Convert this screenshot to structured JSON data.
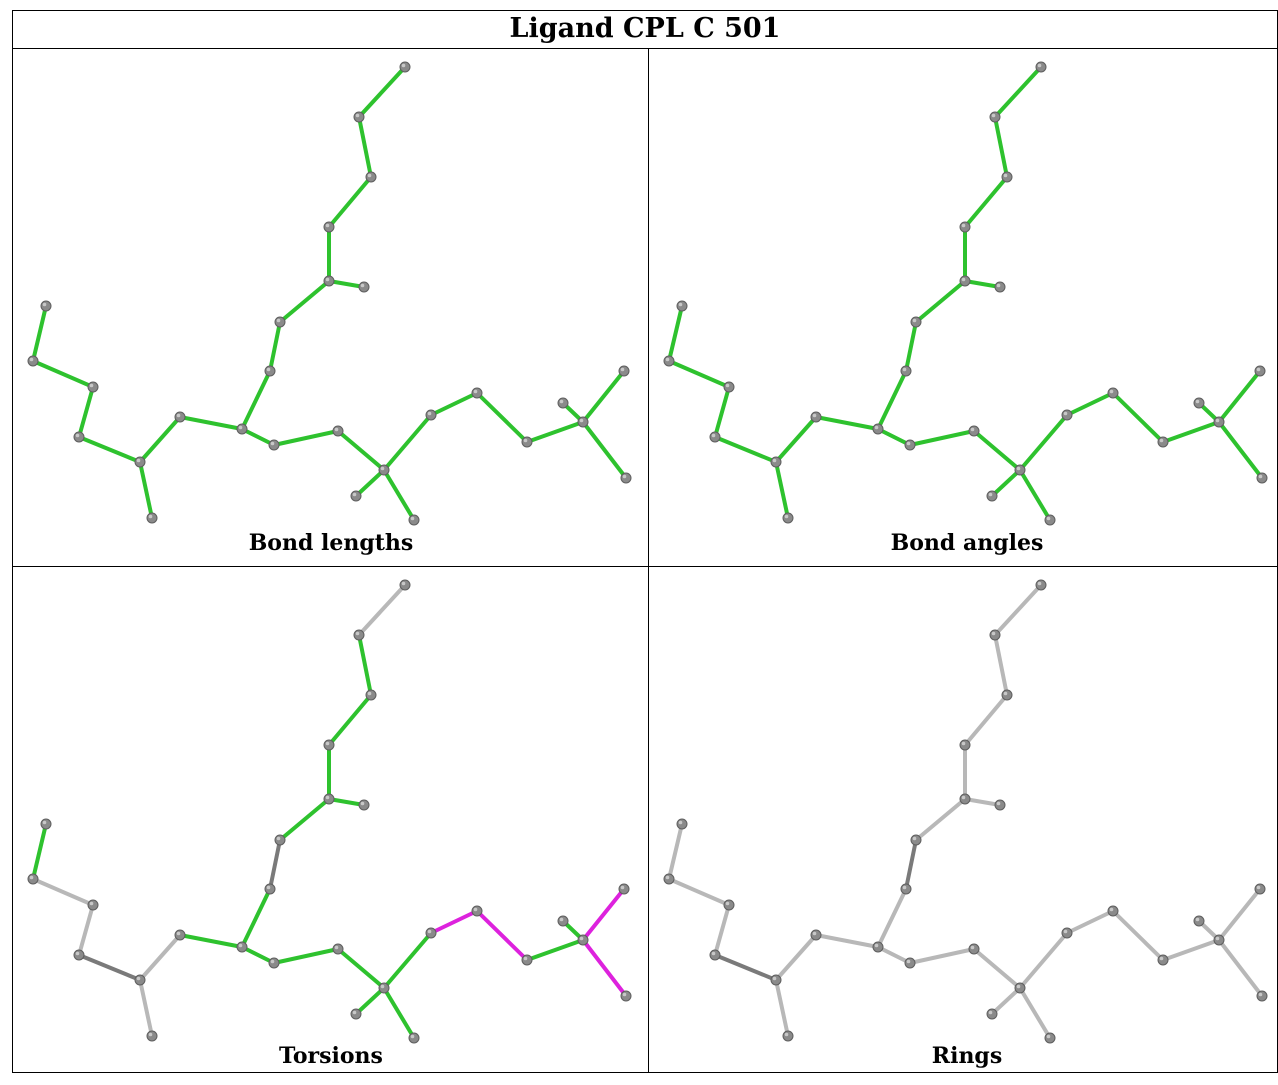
{
  "title": "Ligand CPL C 501",
  "colors": {
    "green": "#2ec22e",
    "green_light": "#55d055",
    "magenta": "#dd22dd",
    "grey_bond": "#b8b8b8",
    "dark_bond": "#7a7a7a",
    "atom": "#8a8a8a"
  },
  "panels": [
    {
      "caption": "Bond lengths",
      "bond_colors": [
        "green",
        "green",
        "green",
        "green",
        "green",
        "green",
        "green",
        "green",
        "green",
        "green",
        "green",
        "green",
        "green",
        "green",
        "green",
        "green",
        "green",
        "green",
        "green",
        "green",
        "green",
        "green",
        "green",
        "green",
        "green",
        "green",
        "green",
        "green",
        "green"
      ]
    },
    {
      "caption": "Bond angles",
      "bond_colors": [
        "green",
        "green",
        "green",
        "green",
        "green",
        "green",
        "green",
        "green",
        "green",
        "green",
        "green",
        "green",
        "green",
        "green",
        "green",
        "green",
        "green",
        "green",
        "green",
        "green",
        "green",
        "green",
        "green",
        "green",
        "green",
        "green",
        "green",
        "green",
        "green"
      ]
    },
    {
      "caption": "Torsions",
      "bond_colors": [
        "grey_bond",
        "green",
        "green",
        "green",
        "green",
        "green",
        "dark_bond",
        "green",
        "green",
        "green",
        "green",
        "green",
        "green",
        "green",
        "magenta",
        "magenta",
        "green",
        "green",
        "magenta",
        "magenta",
        "green",
        "grey_bond",
        "grey_bond",
        "dark_bond",
        "grey_bond",
        "grey_bond",
        "green",
        "green",
        "grey_bond"
      ]
    },
    {
      "caption": "Rings",
      "bond_colors": [
        "grey_bond",
        "grey_bond",
        "grey_bond",
        "grey_bond",
        "grey_bond",
        "grey_bond",
        "dark_bond",
        "grey_bond",
        "grey_bond",
        "grey_bond",
        "grey_bond",
        "grey_bond",
        "grey_bond",
        "grey_bond",
        "grey_bond",
        "grey_bond",
        "grey_bond",
        "grey_bond",
        "grey_bond",
        "grey_bond",
        "grey_bond",
        "grey_bond",
        "grey_bond",
        "dark_bond",
        "grey_bond",
        "grey_bond",
        "grey_bond",
        "grey_bond",
        "grey_bond"
      ]
    }
  ]
}
